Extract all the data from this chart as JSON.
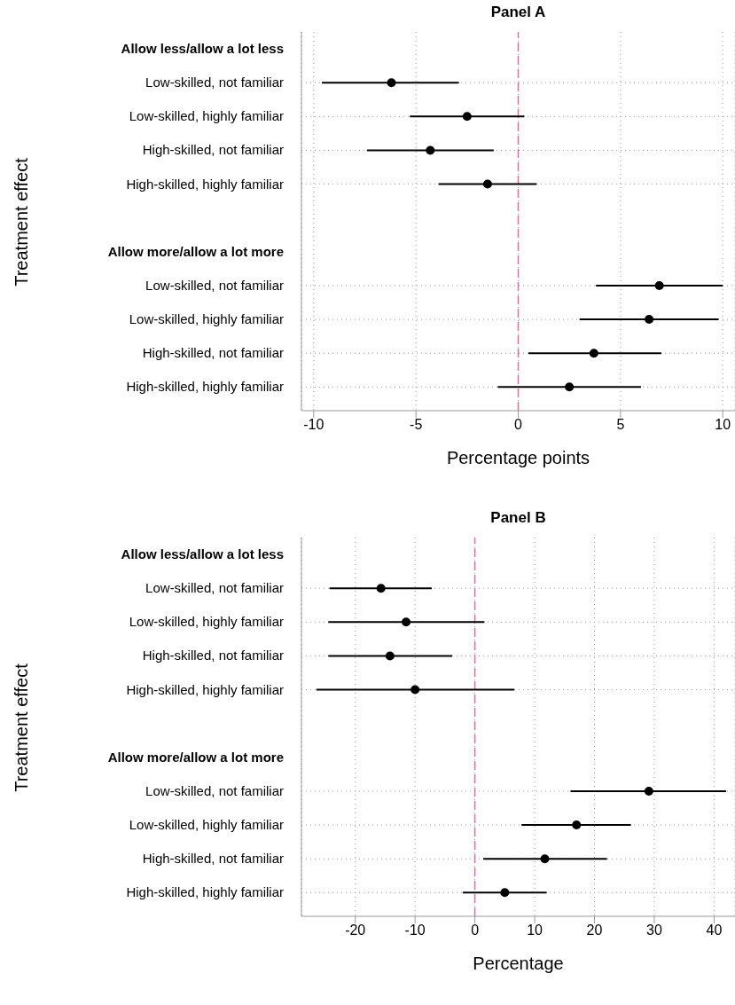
{
  "chart_data": [
    {
      "type": "scatter",
      "orientation": "horizontal",
      "title": "Panel A",
      "xlabel": "Percentage points",
      "ylabel": "Treatment effect",
      "categories": [
        "Allow less/allow a lot less",
        "Low-skilled, not familiar",
        "Low-skilled, highly familiar",
        "High-skilled, not familiar",
        "High-skilled, highly familiar",
        null,
        "Allow more/allow a lot more",
        "Low-skilled, not familiar",
        "Low-skilled, highly familiar",
        "High-skilled, not familiar",
        "High-skilled, highly familiar"
      ],
      "series": [
        {
          "color": "#000000",
          "values": [
            null,
            -6.2,
            -2.5,
            -4.3,
            -1.5,
            null,
            null,
            6.9,
            6.4,
            3.7,
            2.5
          ],
          "errors": [
            null,
            [
              -9.6,
              -2.9
            ],
            [
              -5.3,
              0.3
            ],
            [
              -7.4,
              -1.2
            ],
            [
              -3.9,
              0.9
            ],
            null,
            null,
            [
              3.8,
              10
            ],
            [
              3.0,
              9.8
            ],
            [
              0.5,
              7.0
            ],
            [
              -1.0,
              6.0
            ]
          ]
        }
      ],
      "xlim": [
        -10.6,
        10.6
      ],
      "xticks": [
        -10,
        -5,
        0,
        5,
        10
      ],
      "grid": true,
      "marker": "circle",
      "ref_lines": [
        {
          "axis": "x",
          "value": 0,
          "color": "#d9709f",
          "line_style": "dashed"
        }
      ]
    },
    {
      "type": "scatter",
      "orientation": "horizontal",
      "title": "Panel B",
      "xlabel": "Percentage",
      "ylabel": "Treatment effect",
      "categories": [
        "Allow less/allow a lot less",
        "Low-skilled, not familiar",
        "Low-skilled, highly familiar",
        "High-skilled, not familiar",
        "High-skilled, highly familiar",
        null,
        "Allow more/allow a lot more",
        "Low-skilled, not familiar",
        "Low-skilled, highly familiar",
        "High-skilled, not familiar",
        "High-skilled, highly familiar"
      ],
      "series": [
        {
          "color": "#000000",
          "values": [
            null,
            -15.7,
            -11.5,
            -14.2,
            -10.0,
            null,
            null,
            29.1,
            17.0,
            11.7,
            5.0
          ],
          "errors": [
            null,
            [
              -24.3,
              -7.2
            ],
            [
              -24.5,
              1.6
            ],
            [
              -24.5,
              -3.8
            ],
            [
              -26.5,
              6.6
            ],
            null,
            null,
            [
              16.0,
              42.0
            ],
            [
              7.8,
              26.1
            ],
            [
              1.4,
              22.1
            ],
            [
              -2.0,
              12.0
            ]
          ]
        }
      ],
      "xlim": [
        -29,
        43.5
      ],
      "xticks": [
        -20,
        -10,
        0,
        10,
        20,
        30,
        40
      ],
      "grid": true,
      "marker": "circle",
      "ref_lines": [
        {
          "axis": "x",
          "value": 0,
          "color": "#d9709f",
          "line_style": "dashed"
        }
      ]
    }
  ]
}
